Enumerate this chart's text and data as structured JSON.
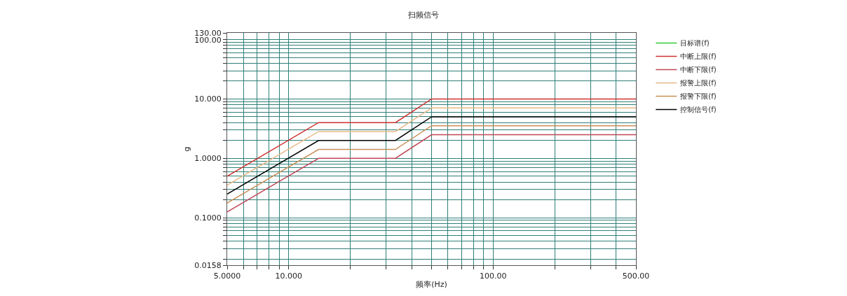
{
  "chart_data": {
    "type": "line",
    "title": "扫频信号",
    "xlabel": "频率(Hz)",
    "ylabel": "g",
    "log": "xy",
    "grid": true,
    "legend": "top right",
    "marker": "none",
    "line_style": "solid",
    "x": [
      5,
      14,
      33.3,
      50,
      500
    ],
    "series": [
      {
        "name": "目标谱(f)",
        "color": "#33cc33",
        "values": [
          null,
          null,
          null,
          null,
          null
        ]
      },
      {
        "name": "中断上限(f)",
        "color": "#d03030",
        "values": [
          0.5,
          4,
          4,
          10,
          10
        ]
      },
      {
        "name": "中断下限(f)",
        "color": "#c04858",
        "values": [
          0.125,
          1,
          1,
          2.5,
          2.5
        ]
      },
      {
        "name": "报警上限(f)",
        "color": "#e8b888",
        "values": [
          0.354,
          2.83,
          2.83,
          7.07,
          7.07
        ]
      },
      {
        "name": "报警下限(f)",
        "color": "#c89058",
        "values": [
          0.177,
          1.41,
          1.41,
          3.54,
          3.54
        ]
      },
      {
        "name": "控制信号(f)",
        "color": "#000000",
        "values": [
          0.25,
          2,
          2,
          5,
          5
        ]
      }
    ],
    "xlim": [
      5,
      500
    ],
    "ylim": [
      0.0158,
      130
    ],
    "xticks": [
      {
        "value": 5,
        "label": "5.0000"
      },
      {
        "value": 6,
        "label": null
      },
      {
        "value": 7,
        "label": null
      },
      {
        "value": 8,
        "label": null
      },
      {
        "value": 9,
        "label": null
      },
      {
        "value": 10,
        "label": "10.000"
      },
      {
        "value": 20,
        "label": null
      },
      {
        "value": 30,
        "label": null
      },
      {
        "value": 40,
        "label": null
      },
      {
        "value": 50,
        "label": null
      },
      {
        "value": 60,
        "label": null
      },
      {
        "value": 70,
        "label": null
      },
      {
        "value": 80,
        "label": null
      },
      {
        "value": 90,
        "label": null
      },
      {
        "value": 100,
        "label": "100.00"
      },
      {
        "value": 200,
        "label": null
      },
      {
        "value": 300,
        "label": null
      },
      {
        "value": 400,
        "label": null
      },
      {
        "value": 500,
        "label": "500.00"
      }
    ],
    "yticks": [
      {
        "value": 0.0158,
        "label": "0.0158"
      },
      {
        "value": 0.02,
        "label": null
      },
      {
        "value": 0.03,
        "label": null
      },
      {
        "value": 0.04,
        "label": null
      },
      {
        "value": 0.05,
        "label": null
      },
      {
        "value": 0.06,
        "label": null
      },
      {
        "value": 0.07,
        "label": null
      },
      {
        "value": 0.08,
        "label": null
      },
      {
        "value": 0.09,
        "label": null
      },
      {
        "value": 0.1,
        "label": "0.1000"
      },
      {
        "value": 0.2,
        "label": null
      },
      {
        "value": 0.3,
        "label": null
      },
      {
        "value": 0.4,
        "label": null
      },
      {
        "value": 0.5,
        "label": null
      },
      {
        "value": 0.6,
        "label": null
      },
      {
        "value": 0.7,
        "label": null
      },
      {
        "value": 0.8,
        "label": null
      },
      {
        "value": 0.9,
        "label": null
      },
      {
        "value": 1,
        "label": "1.0000"
      },
      {
        "value": 2,
        "label": null
      },
      {
        "value": 3,
        "label": null
      },
      {
        "value": 4,
        "label": null
      },
      {
        "value": 5,
        "label": null
      },
      {
        "value": 6,
        "label": null
      },
      {
        "value": 7,
        "label": null
      },
      {
        "value": 8,
        "label": null
      },
      {
        "value": 9,
        "label": null
      },
      {
        "value": 10,
        "label": "10.000"
      },
      {
        "value": 20,
        "label": null
      },
      {
        "value": 30,
        "label": null
      },
      {
        "value": 40,
        "label": null
      },
      {
        "value": 50,
        "label": null
      },
      {
        "value": 60,
        "label": null
      },
      {
        "value": 70,
        "label": null
      },
      {
        "value": 80,
        "label": null
      },
      {
        "value": 90,
        "label": null
      },
      {
        "value": 100,
        "label": "100.00"
      },
      {
        "value": 130,
        "label": "130.00"
      }
    ]
  }
}
